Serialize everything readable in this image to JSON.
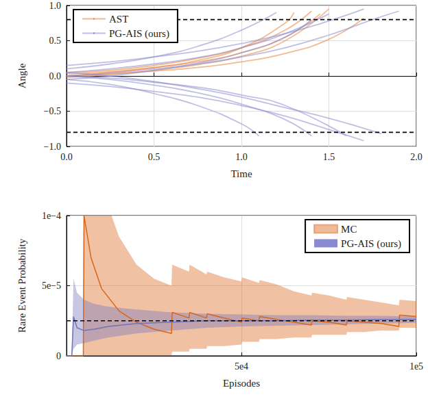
{
  "chart_data": [
    {
      "type": "line",
      "x_label": "Time",
      "y_label": "Angle",
      "xlim": [
        0,
        2
      ],
      "ylim": [
        -1,
        1
      ],
      "xticks": [
        {
          "value": 0,
          "label": "0.0"
        },
        {
          "value": 0.5,
          "label": "0.5"
        },
        {
          "value": 1,
          "label": "1.0"
        },
        {
          "value": 1.5,
          "label": "1.5"
        },
        {
          "value": 2,
          "label": "2.0"
        }
      ],
      "yticks": [
        {
          "value": -1,
          "label": "−1.0"
        },
        {
          "value": -0.5,
          "label": "−0.5"
        },
        {
          "value": 0,
          "label": "0.0"
        },
        {
          "value": 0.5,
          "label": "0.5"
        },
        {
          "value": 1,
          "label": "1.0"
        }
      ],
      "grid": true,
      "legend": "upper left",
      "thresholds": [
        0.8,
        -0.8
      ],
      "series": [
        {
          "name": "AST",
          "color": "#e8823a",
          "x": [
            0,
            0.25,
            0.5,
            0.75,
            1,
            1.25,
            1.3
          ],
          "values": [
            0.0,
            0.05,
            0.12,
            0.22,
            0.4,
            0.75,
            0.9
          ]
        },
        {
          "name": "AST",
          "color": "#e8823a",
          "x": [
            0,
            0.25,
            0.5,
            0.75,
            1,
            1.25,
            1.4
          ],
          "values": [
            0.05,
            0.08,
            0.15,
            0.25,
            0.4,
            0.65,
            0.92
          ]
        },
        {
          "name": "AST",
          "color": "#e8823a",
          "x": [
            0,
            0.25,
            0.5,
            0.75,
            1,
            1.25,
            1.5
          ],
          "values": [
            -0.02,
            0.02,
            0.08,
            0.16,
            0.28,
            0.5,
            0.95
          ]
        },
        {
          "name": "AST",
          "color": "#e8823a",
          "x": [
            0,
            0.25,
            0.5,
            0.75,
            1,
            1.25,
            1.5,
            1.7
          ],
          "values": [
            0.0,
            0.03,
            0.07,
            0.12,
            0.2,
            0.32,
            0.52,
            0.82
          ]
        },
        {
          "name": "AST",
          "color": "#e8823a",
          "x": [
            0,
            0.25,
            0.5,
            0.75,
            1,
            1.25,
            1.45
          ],
          "values": [
            0.03,
            0.06,
            0.12,
            0.2,
            0.33,
            0.55,
            0.88
          ]
        },
        {
          "name": "PG-AIS (ours)",
          "color": "#8a8ad0",
          "x": [
            0,
            0.25,
            0.5,
            0.75,
            1,
            1.2
          ],
          "values": [
            0.1,
            0.17,
            0.27,
            0.42,
            0.65,
            0.9
          ]
        },
        {
          "name": "PG-AIS (ours)",
          "color": "#8a8ad0",
          "x": [
            0,
            0.25,
            0.5,
            0.75,
            1,
            1.25,
            1.5
          ],
          "values": [
            0.05,
            0.1,
            0.17,
            0.26,
            0.4,
            0.6,
            0.88
          ]
        },
        {
          "name": "PG-AIS (ours)",
          "color": "#8a8ad0",
          "x": [
            0,
            0.25,
            0.5,
            0.75,
            1,
            1.25,
            1.5,
            1.75,
            1.9
          ],
          "values": [
            0.0,
            0.04,
            0.1,
            0.17,
            0.27,
            0.4,
            0.58,
            0.8,
            0.92
          ]
        },
        {
          "name": "PG-AIS (ours)",
          "color": "#8a8ad0",
          "x": [
            0,
            0.25,
            0.5,
            0.75,
            1,
            1.25,
            1.5,
            1.7
          ],
          "values": [
            0.15,
            0.2,
            0.27,
            0.35,
            0.46,
            0.6,
            0.78,
            0.95
          ]
        },
        {
          "name": "PG-AIS (ours)",
          "color": "#8a8ad0",
          "x": [
            0,
            0.25,
            0.5,
            0.75,
            1,
            1.25,
            1.4
          ],
          "values": [
            -0.05,
            0.0,
            0.08,
            0.18,
            0.33,
            0.55,
            0.8
          ]
        },
        {
          "name": "PG-AIS (ours)",
          "color": "#8a8ad0",
          "x": [
            0,
            0.25,
            0.5,
            0.75,
            1,
            1.1
          ],
          "values": [
            -0.05,
            -0.12,
            -0.25,
            -0.42,
            -0.68,
            -0.85
          ]
        },
        {
          "name": "PG-AIS (ours)",
          "color": "#8a8ad0",
          "x": [
            0,
            0.25,
            0.5,
            0.75,
            1,
            1.25,
            1.4
          ],
          "values": [
            0.0,
            -0.05,
            -0.13,
            -0.24,
            -0.4,
            -0.62,
            -0.85
          ]
        },
        {
          "name": "PG-AIS (ours)",
          "color": "#8a8ad0",
          "x": [
            0,
            0.25,
            0.5,
            0.75,
            1,
            1.25,
            1.5,
            1.75,
            1.8
          ],
          "values": [
            0.05,
            0.0,
            -0.08,
            -0.18,
            -0.3,
            -0.45,
            -0.6,
            -0.78,
            -0.82
          ]
        },
        {
          "name": "PG-AIS (ours)",
          "color": "#8a8ad0",
          "x": [
            0,
            0.25,
            0.5,
            0.75,
            1,
            1.25,
            1.5,
            1.7
          ],
          "values": [
            -0.1,
            -0.15,
            -0.22,
            -0.3,
            -0.42,
            -0.57,
            -0.76,
            -0.92
          ]
        },
        {
          "name": "PG-AIS (ours)",
          "color": "#8a8ad0",
          "x": [
            0,
            0.25,
            0.5,
            0.75,
            1,
            1.25,
            1.6
          ],
          "values": [
            0.0,
            -0.03,
            -0.09,
            -0.16,
            -0.27,
            -0.42,
            -0.85
          ]
        }
      ]
    },
    {
      "type": "line",
      "x_label": "Episodes",
      "y_label": "Rare Event Probability",
      "xlim": [
        0,
        100000
      ],
      "ylim": [
        0,
        0.0001
      ],
      "xticks": [
        {
          "value": 50000,
          "label": "5e4"
        },
        {
          "value": 100000,
          "label": "1e5"
        }
      ],
      "yticks": [
        0,
        {
          "value": 5e-05,
          "label": "5e−5"
        },
        {
          "value": 0.0001,
          "label": "1e−4"
        }
      ],
      "grid": true,
      "legend": "upper right",
      "reference": 2.5e-05,
      "series": [
        {
          "name": "MC",
          "color": "#d9651a",
          "x": [
            0,
            4800,
            5000,
            7000,
            10000,
            15000,
            20000,
            25000,
            30000,
            30200,
            35000,
            35200,
            40000,
            40200,
            45000,
            50000,
            50200,
            55000,
            55200,
            60000,
            65000,
            70000,
            70200,
            75000,
            80000,
            80200,
            85000,
            90000,
            95000,
            95200,
            100000
          ],
          "values": [
            0,
            0,
            0.0001,
            7e-05,
            4.8e-05,
            3.2e-05,
            2.4e-05,
            1.9e-05,
            1.6e-05,
            3.1e-05,
            2.7e-05,
            3.1e-05,
            2.7e-05,
            3e-05,
            2.7e-05,
            2.4e-05,
            2.7e-05,
            2.5e-05,
            2.8e-05,
            2.6e-05,
            2.4e-05,
            2.2e-05,
            2.5e-05,
            2.4e-05,
            2.2e-05,
            2.5e-05,
            2.4e-05,
            2.3e-05,
            2.1e-05,
            2.9e-05,
            2.8e-05
          ],
          "lower": [
            0,
            0,
            0,
            0,
            0,
            0,
            0,
            0,
            0,
            3e-06,
            3e-06,
            5e-06,
            5e-06,
            7e-06,
            7e-06,
            8e-06,
            1e-05,
            1e-05,
            1.2e-05,
            1.2e-05,
            1.3e-05,
            1.3e-05,
            1.5e-05,
            1.5e-05,
            1.5e-05,
            1.7e-05,
            1.7e-05,
            1.8e-05,
            1.8e-05,
            2e-05,
            2e-05
          ],
          "upper": [
            0,
            0,
            0.0003,
            0.00016,
            0.00012,
            8.5e-05,
            6.5e-05,
            5.5e-05,
            5e-05,
            6.5e-05,
            6e-05,
            6.5e-05,
            5.8e-05,
            6e-05,
            5.6e-05,
            5.3e-05,
            5.6e-05,
            5.2e-05,
            5.4e-05,
            5.1e-05,
            4.6e-05,
            4.3e-05,
            4.5e-05,
            4.3e-05,
            4e-05,
            4.2e-05,
            4e-05,
            3.8e-05,
            3.6e-05,
            4e-05,
            3.9e-05
          ]
        },
        {
          "name": "PG-AIS (ours)",
          "color": "#7272bb",
          "x": [
            0,
            1500,
            2000,
            3000,
            5000,
            8000,
            12000,
            20000,
            30000,
            40000,
            50000,
            60000,
            70000,
            80000,
            90000,
            100000
          ],
          "values": [
            0,
            0,
            2.8e-05,
            2e-05,
            1.8e-05,
            1.9e-05,
            2.1e-05,
            2.3e-05,
            2.4e-05,
            2.5e-05,
            2.5e-05,
            2.5e-05,
            2.55e-05,
            2.55e-05,
            2.6e-05,
            2.6e-05
          ],
          "lower": [
            0,
            0,
            5e-06,
            8e-06,
            9e-06,
            1.1e-05,
            1.3e-05,
            1.6e-05,
            1.8e-05,
            2e-05,
            2.1e-05,
            2.15e-05,
            2.2e-05,
            2.25e-05,
            2.3e-05,
            2.35e-05
          ],
          "upper": [
            0,
            0,
            5.5e-05,
            4.5e-05,
            4e-05,
            3.7e-05,
            3.5e-05,
            3.3e-05,
            3.1e-05,
            3e-05,
            2.95e-05,
            2.9e-05,
            2.9e-05,
            2.85e-05,
            2.85e-05,
            2.8e-05
          ]
        }
      ]
    }
  ]
}
